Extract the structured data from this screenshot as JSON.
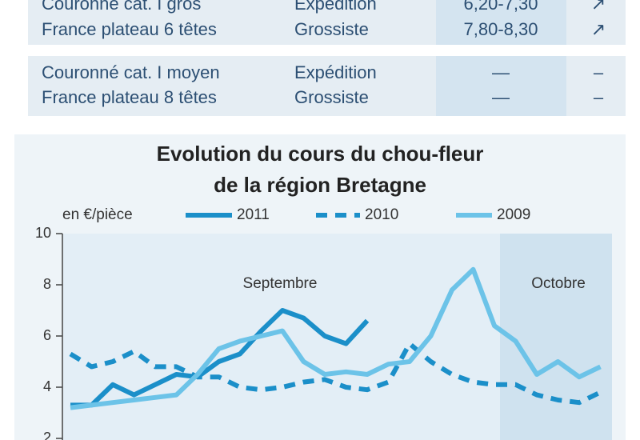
{
  "table": {
    "groups": [
      [
        [
          "Couronné cat. I gros",
          "Expédition",
          "6,20-7,30",
          "↗"
        ],
        [
          "France plateau 6 têtes",
          "Grossiste",
          "7,80-8,30",
          "↗"
        ]
      ],
      [
        [
          "Couronné cat. I moyen",
          "Expédition",
          "—",
          "–"
        ],
        [
          "France plateau 8 têtes",
          "Grossiste",
          "—",
          "–"
        ]
      ]
    ]
  },
  "chart_data": {
    "type": "line",
    "title": [
      "Evolution du cours du chou-fleur",
      "de la région Bretagne"
    ],
    "ylabel": "en €/pièce",
    "categories": [
      null,
      null,
      null,
      null,
      null,
      null,
      null,
      null,
      null,
      null,
      null,
      null,
      null,
      null,
      null,
      null,
      null,
      null,
      null,
      null,
      null,
      null,
      null,
      null,
      null,
      null
    ],
    "series": [
      {
        "name": "2011",
        "color": "#1b8fc9",
        "style": "solid",
        "values": [
          3.3,
          3.3,
          4.1,
          3.7,
          4.1,
          4.5,
          4.4,
          5.0,
          5.3,
          6.2,
          7.0,
          6.7,
          6.0,
          5.7,
          6.6,
          null,
          null,
          null,
          null,
          null,
          null,
          null,
          null,
          null,
          null,
          null
        ]
      },
      {
        "name": "2010",
        "color": "#1b8fc9",
        "style": "dashed",
        "values": [
          5.3,
          4.8,
          5.0,
          5.4,
          4.8,
          4.8,
          4.4,
          4.4,
          4.0,
          3.9,
          4.0,
          4.2,
          4.3,
          4.0,
          3.9,
          4.2,
          5.7,
          5.0,
          4.5,
          4.2,
          4.1,
          4.1,
          3.7,
          3.5,
          3.4,
          3.8
        ]
      },
      {
        "name": "2009",
        "color": "#6cc3e8",
        "style": "solid",
        "values": [
          3.2,
          3.3,
          3.4,
          3.5,
          3.6,
          3.7,
          4.5,
          5.5,
          5.8,
          6.0,
          6.2,
          5.0,
          4.5,
          4.6,
          4.5,
          4.9,
          5.0,
          6.0,
          7.8,
          8.6,
          6.4,
          5.8,
          4.5,
          5.0,
          4.4,
          4.8
        ]
      }
    ],
    "annotations": [
      {
        "text": "Septembre"
      },
      {
        "text": "Octobre"
      }
    ],
    "ylim": [
      2,
      10
    ],
    "yticks": [
      2,
      4,
      6,
      8,
      10
    ],
    "grid": false
  }
}
